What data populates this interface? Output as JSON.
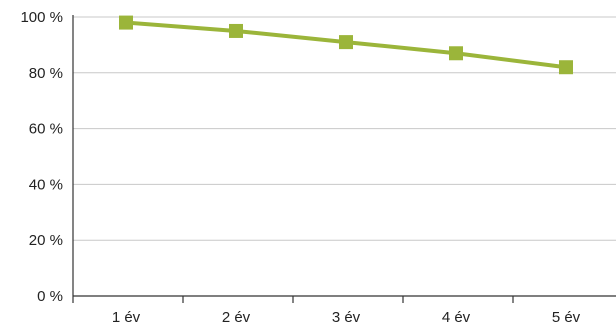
{
  "chart_data": {
    "type": "line",
    "title": "",
    "xlabel": "",
    "ylabel": "",
    "categories": [
      "1 év",
      "2 év",
      "3 év",
      "4 év",
      "5 év"
    ],
    "series": [
      {
        "values": [
          98,
          95,
          91,
          87,
          82
        ]
      }
    ],
    "ylim": [
      0,
      100
    ],
    "yticks": [
      0,
      20,
      40,
      60,
      80,
      100
    ],
    "ytick_labels": [
      "0 %",
      "20 %",
      "40 %",
      "60 %",
      "80 %",
      "100 %"
    ],
    "grid": true,
    "legend": "none",
    "colors": {
      "series_line": "#9bb53a",
      "series_marker": "#9bb53a",
      "gridline": "#c8c8c8",
      "axis": "#333333",
      "text": "#222222"
    }
  }
}
